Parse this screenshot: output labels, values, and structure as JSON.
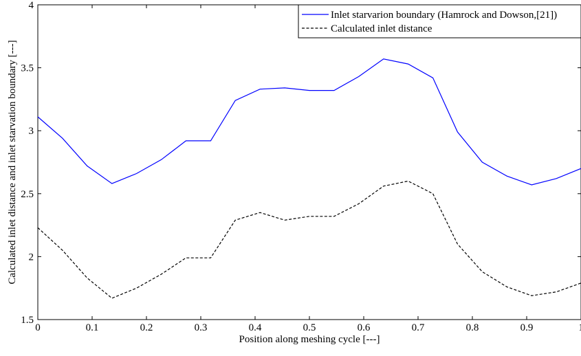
{
  "chart_data": {
    "type": "line",
    "title": "",
    "xlabel": "Position along meshing cycle [---]",
    "ylabel": "Calculated inlet distance and inlet starvation boundary [---]",
    "xlim": [
      0,
      1
    ],
    "ylim": [
      1.5,
      4
    ],
    "x_ticks": [
      "0",
      "0.1",
      "0.2",
      "0.3",
      "0.4",
      "0.5",
      "0.6",
      "0.7",
      "0.8",
      "0.9",
      "1"
    ],
    "y_ticks": [
      "1.5",
      "2",
      "2.5",
      "3",
      "3.5",
      "4"
    ],
    "grid": false,
    "legend_position": "top-right",
    "series": [
      {
        "name": "Inlet starvarion boundary (Hamrock and Dowson,[21])",
        "color": "#0000ff",
        "style": "solid",
        "x": [
          0,
          0.0455,
          0.0909,
          0.1364,
          0.1818,
          0.2273,
          0.2727,
          0.3182,
          0.3636,
          0.4091,
          0.4545,
          0.5,
          0.5455,
          0.5909,
          0.6364,
          0.6818,
          0.7273,
          0.7727,
          0.8182,
          0.8636,
          0.9091,
          0.9545,
          1.0
        ],
        "values": [
          3.11,
          2.94,
          2.72,
          2.58,
          2.66,
          2.77,
          2.92,
          2.92,
          3.24,
          3.33,
          3.34,
          3.32,
          3.32,
          3.43,
          3.57,
          3.53,
          3.42,
          2.99,
          2.75,
          2.64,
          2.57,
          2.62,
          2.7
        ]
      },
      {
        "name": "Calculated inlet distance",
        "color": "#000000",
        "style": "dashed",
        "x": [
          0,
          0.0455,
          0.0909,
          0.1364,
          0.1818,
          0.2273,
          0.2727,
          0.3182,
          0.3636,
          0.4091,
          0.4545,
          0.5,
          0.5455,
          0.5909,
          0.6364,
          0.6818,
          0.7273,
          0.7727,
          0.8182,
          0.8636,
          0.9091,
          0.9545,
          1.0
        ],
        "values": [
          2.23,
          2.05,
          1.83,
          1.67,
          1.75,
          1.86,
          1.99,
          1.99,
          2.29,
          2.35,
          2.29,
          2.32,
          2.32,
          2.42,
          2.56,
          2.6,
          2.5,
          2.1,
          1.88,
          1.76,
          1.69,
          1.72,
          1.79
        ]
      }
    ]
  }
}
